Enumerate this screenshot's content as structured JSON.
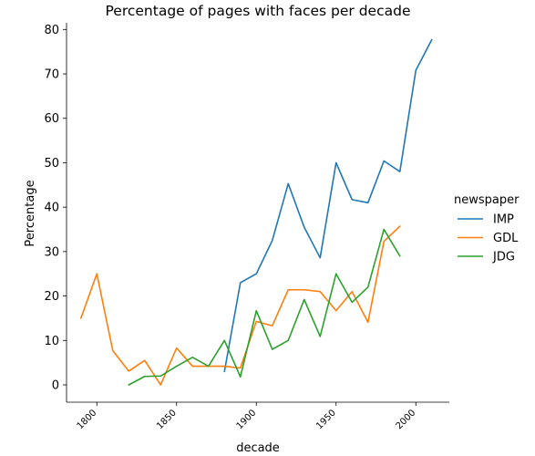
{
  "chart_data": {
    "type": "line",
    "title": "Percentage of pages with faces per decade",
    "xlabel": "decade",
    "ylabel": "Percentage",
    "xlim": [
      1781,
      2021
    ],
    "ylim": [
      -3.9,
      81.5
    ],
    "xticks": [
      1800,
      1850,
      1900,
      1950,
      2000
    ],
    "yticks": [
      0,
      10,
      20,
      30,
      40,
      50,
      60,
      70,
      80
    ],
    "grid": false,
    "legend": {
      "title": "newspaper",
      "placement": "right"
    },
    "series": [
      {
        "name": "IMP",
        "color": "#1f77b4",
        "x": [
          1880,
          1890,
          1900,
          1910,
          1920,
          1930,
          1940,
          1950,
          1960,
          1970,
          1980,
          1990,
          2000,
          2010
        ],
        "values": [
          3.0,
          23.0,
          25.0,
          32.5,
          45.3,
          35.5,
          28.6,
          50.0,
          41.7,
          41.0,
          50.4,
          48.0,
          70.8,
          77.7
        ]
      },
      {
        "name": "GDL",
        "color": "#ff7f0e",
        "x": [
          1790,
          1800,
          1810,
          1820,
          1830,
          1840,
          1850,
          1860,
          1870,
          1880,
          1890,
          1900,
          1910,
          1920,
          1930,
          1940,
          1950,
          1960,
          1970,
          1980,
          1990
        ],
        "values": [
          15.0,
          25.0,
          7.7,
          3.1,
          5.5,
          0.0,
          8.3,
          4.2,
          4.2,
          4.2,
          3.8,
          14.3,
          13.3,
          21.4,
          21.4,
          21.0,
          16.7,
          21.0,
          14.1,
          32.3,
          35.7
        ]
      },
      {
        "name": "JDG",
        "color": "#2ca02c",
        "x": [
          1820,
          1830,
          1840,
          1850,
          1860,
          1870,
          1880,
          1890,
          1900,
          1910,
          1920,
          1930,
          1940,
          1950,
          1960,
          1970,
          1980,
          1990
        ],
        "values": [
          0.0,
          1.9,
          2.0,
          4.2,
          6.2,
          4.2,
          10.0,
          1.8,
          16.7,
          8.0,
          10.0,
          19.2,
          10.9,
          25.0,
          18.6,
          22.0,
          35.0,
          29.0
        ]
      }
    ]
  }
}
